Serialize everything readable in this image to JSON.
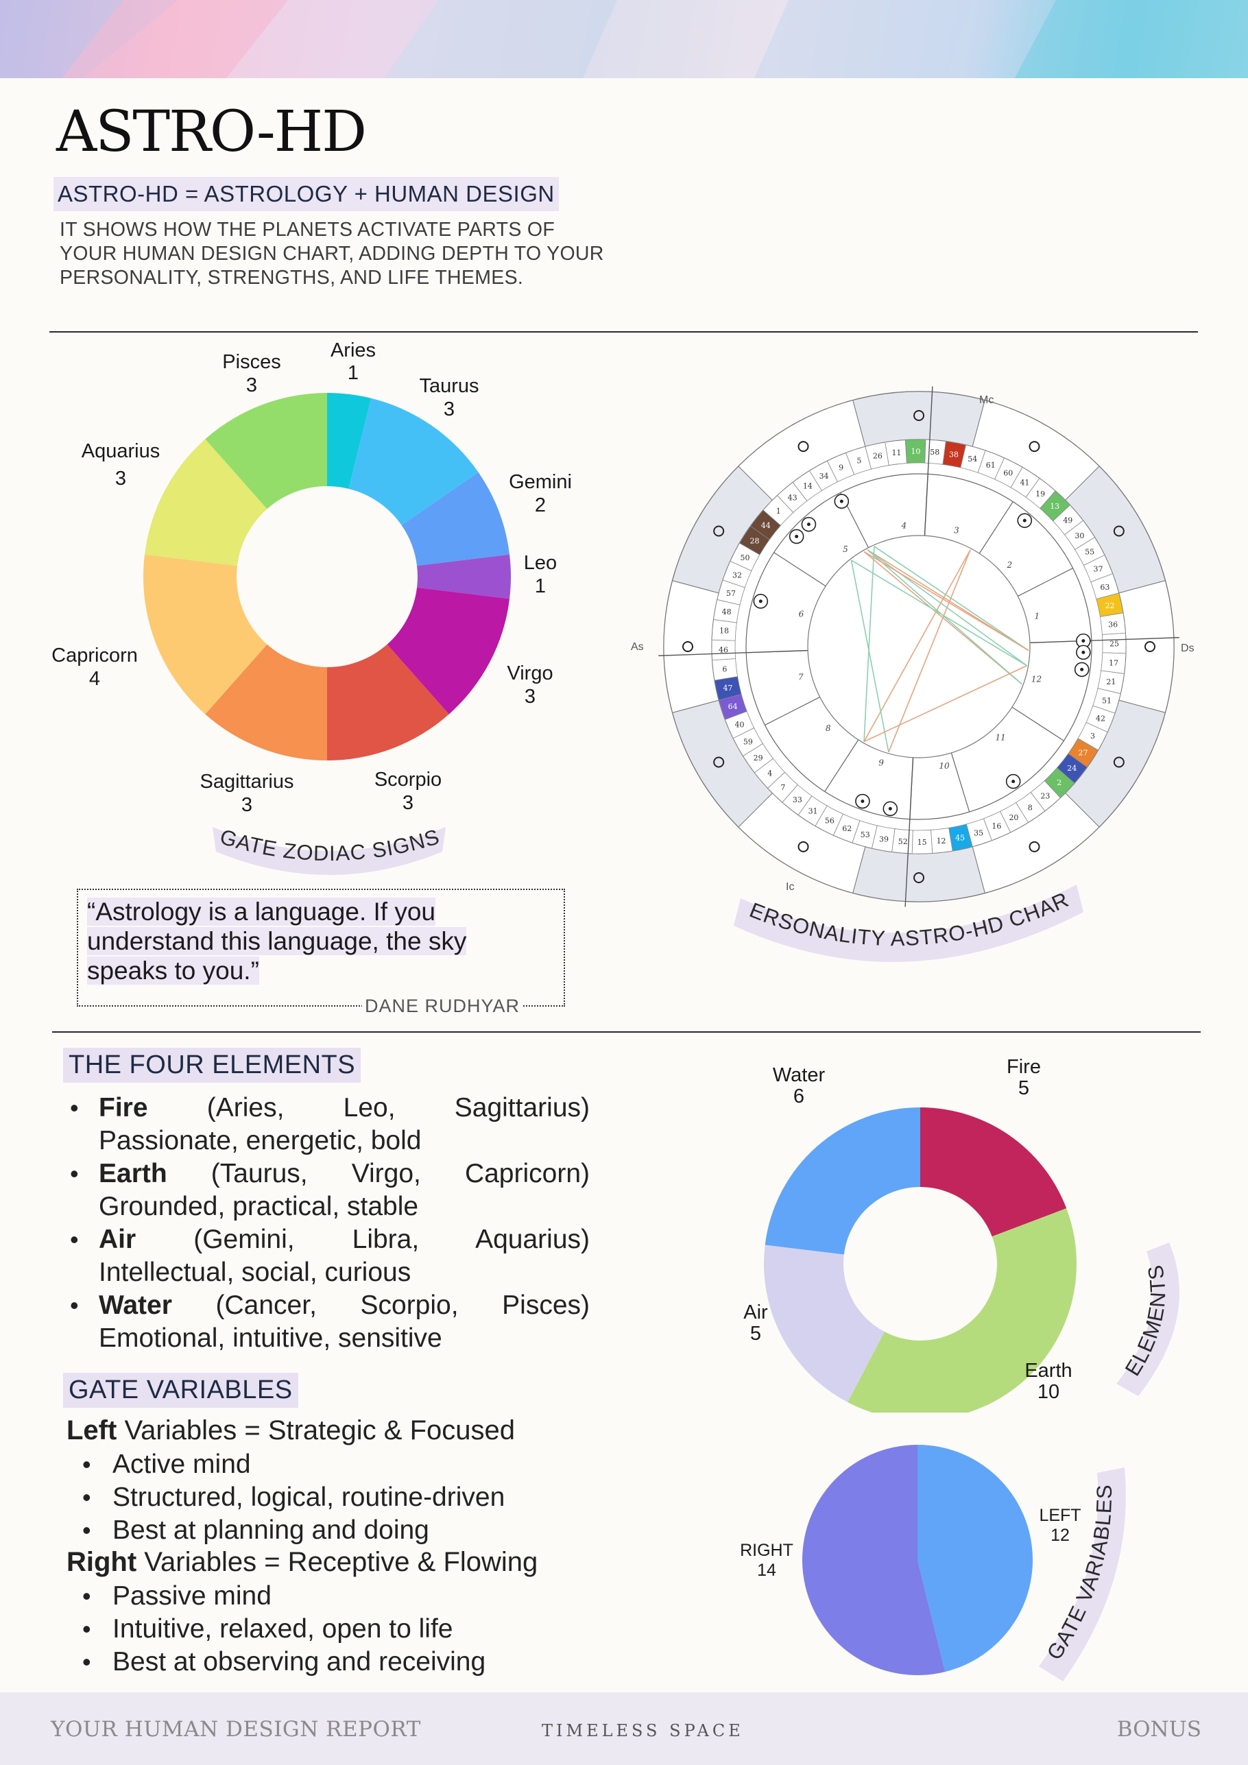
{
  "header": {
    "title": "ASTRO-HD",
    "subtitle": "ASTRO-HD = ASTROLOGY + HUMAN DESIGN",
    "intro": "IT SHOWS HOW THE PLANETS ACTIVATE PARTS OF YOUR HUMAN DESIGN CHART, ADDING DEPTH TO YOUR PERSONALITY, STRENGTHS, AND LIFE THEMES."
  },
  "zodiac_chart": {
    "caption": "GATE ZODIAC SIGNS",
    "labels": {
      "aries": {
        "name": "Aries",
        "value": "1"
      },
      "taurus": {
        "name": "Taurus",
        "value": "3"
      },
      "gemini": {
        "name": "Gemini",
        "value": "2"
      },
      "leo": {
        "name": "Leo",
        "value": "1"
      },
      "virgo": {
        "name": "Virgo",
        "value": "3"
      },
      "scorpio": {
        "name": "Scorpio",
        "value": "3"
      },
      "sagittarius": {
        "name": "Sagittarius",
        "value": "3"
      },
      "capricorn": {
        "name": "Capricorn",
        "value": "4"
      },
      "aquarius": {
        "name": "Aquarius",
        "value": "3"
      },
      "pisces": {
        "name": "Pisces",
        "value": "3"
      }
    }
  },
  "wheel": {
    "caption": "PERSONALITY ASTRO-HD CHART",
    "axis_labels": {
      "mc": "Mc",
      "ic": "Ic",
      "as": "As",
      "ds": "Ds"
    },
    "house_numbers": [
      "1",
      "2",
      "3",
      "4",
      "5",
      "6",
      "7",
      "8",
      "9",
      "10",
      "11",
      "12"
    ],
    "gate_numbers": [
      "41",
      "19",
      "13",
      "49",
      "30",
      "55",
      "37",
      "63",
      "22",
      "36",
      "25",
      "17",
      "21",
      "51",
      "42",
      "3",
      "27",
      "24",
      "2",
      "23",
      "8",
      "20",
      "16",
      "35",
      "45",
      "12",
      "15",
      "52",
      "39",
      "53",
      "62",
      "56",
      "31",
      "33",
      "7",
      "4",
      "29",
      "59",
      "40",
      "64",
      "47",
      "6",
      "46",
      "18",
      "48",
      "57",
      "32",
      "50",
      "28",
      "44",
      "1",
      "43",
      "14",
      "34",
      "9",
      "5",
      "26",
      "11",
      "10",
      "58",
      "38",
      "54",
      "61",
      "60"
    ],
    "colors": {
      "sign_ring": "#e4e6ee",
      "gold": "#f3c21d",
      "orange": "#e8832f",
      "blue": "#3d54b4",
      "green": "#6cc067",
      "cyan": "#1aa9e8",
      "red": "#c7341f",
      "brown": "#6b4a3a",
      "purple": "#7b5bd1",
      "aspect_orange": "#e9a37f",
      "aspect_green": "#8ccfb0"
    }
  },
  "quote": {
    "text": "“Astrology is a language. If you understand this language, the sky speaks to you.”",
    "author": "DANE RUDHYAR"
  },
  "elements": {
    "heading": "THE FOUR ELEMENTS",
    "items": [
      {
        "name": "Fire",
        "signs": "(Aries, Leo, Sagittarius)",
        "desc": "Passionate, energetic, bold"
      },
      {
        "name": "Earth",
        "signs": "(Taurus, Virgo, Capricorn)",
        "desc": "Grounded, practical, stable"
      },
      {
        "name": "Air",
        "signs": "(Gemini, Libra, Aquarius)",
        "desc": "Intellectual, social, curious"
      },
      {
        "name": "Water",
        "signs": "(Cancer, Scorpio, Pisces)",
        "desc": "Emotional, intuitive, sensitive"
      }
    ],
    "chart_caption": "ELEMENTS"
  },
  "variables": {
    "heading": "GATE VARIABLES",
    "left": {
      "word": "Left",
      "rest": " Variables = Strategic & Focused",
      "items": [
        "Active mind",
        "Structured, logical, routine-driven",
        "Best at planning and doing"
      ]
    },
    "right": {
      "word": "Right",
      "rest": " Variables = Receptive & Flowing",
      "items": [
        "Passive mind",
        "Intuitive, relaxed, open to life",
        "Best at observing and receiving"
      ]
    },
    "chart_caption": "GATE VARIABLES"
  },
  "footer": {
    "left": "YOUR HUMAN DESIGN REPORT",
    "middle": "TIMELESS SPACE",
    "right": "BONUS"
  },
  "chart_data": [
    {
      "type": "pie",
      "title": "GATE ZODIAC SIGNS",
      "donut": true,
      "categories": [
        "Aries",
        "Taurus",
        "Gemini",
        "Leo",
        "Virgo",
        "Scorpio",
        "Sagittarius",
        "Capricorn",
        "Aquarius",
        "Pisces"
      ],
      "values": [
        1,
        3,
        2,
        1,
        3,
        3,
        3,
        4,
        3,
        3
      ],
      "colors": [
        "#0fc8dc",
        "#45c0f6",
        "#5f9ff7",
        "#9b51d0",
        "#bb18a6",
        "#e05545",
        "#f6914f",
        "#fdca71",
        "#e4ea72",
        "#95dd6a"
      ]
    },
    {
      "type": "pie",
      "title": "ELEMENTS",
      "donut": true,
      "categories": [
        "Fire",
        "Earth",
        "Air",
        "Water"
      ],
      "values": [
        5,
        10,
        5,
        6
      ],
      "colors": [
        "#c2245c",
        "#b4dc7c",
        "#d5d2ef",
        "#60a5f8"
      ]
    },
    {
      "type": "pie",
      "title": "GATE VARIABLES",
      "donut": false,
      "categories": [
        "LEFT",
        "RIGHT"
      ],
      "values": [
        12,
        14
      ],
      "colors": [
        "#60a5f8",
        "#7d7ee8"
      ]
    }
  ]
}
